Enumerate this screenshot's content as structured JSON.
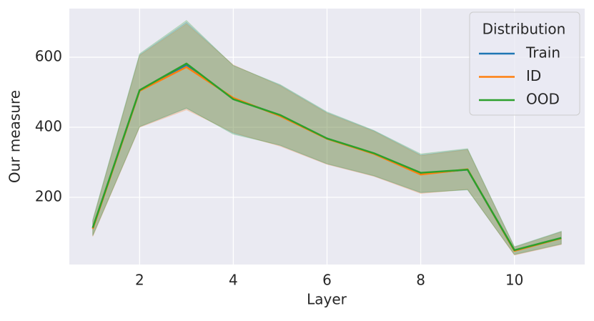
{
  "chart_data": {
    "type": "line",
    "x_label": "Layer",
    "y_label": "Our measure",
    "x": [
      1,
      2,
      3,
      4,
      5,
      6,
      7,
      8,
      9,
      10,
      11
    ],
    "series": [
      {
        "name": "Train",
        "color": "#1f77b4",
        "values": [
          112,
          505,
          578,
          482,
          434,
          368,
          325,
          267,
          279,
          48,
          84
        ],
        "lower": [
          90,
          401,
          454,
          383,
          348,
          295,
          261,
          213,
          222,
          36,
          66
        ],
        "upper": [
          134,
          607,
          700,
          577,
          520,
          442,
          390,
          321,
          337,
          58,
          102
        ]
      },
      {
        "name": "ID",
        "color": "#ff7f0e",
        "values": [
          110,
          504,
          572,
          484,
          432,
          367,
          324,
          265,
          280,
          47,
          83
        ],
        "lower": [
          88,
          400,
          450,
          385,
          346,
          294,
          260,
          211,
          223,
          35,
          65
        ],
        "upper": [
          132,
          605,
          695,
          578,
          518,
          440,
          388,
          319,
          336,
          57,
          101
        ]
      },
      {
        "name": "OOD",
        "color": "#2ca02c",
        "values": [
          113,
          506,
          582,
          480,
          435,
          368,
          326,
          270,
          279,
          49,
          84
        ],
        "lower": [
          91,
          402,
          455,
          380,
          349,
          296,
          262,
          214,
          221,
          37,
          67
        ],
        "upper": [
          136,
          610,
          705,
          576,
          522,
          444,
          391,
          324,
          339,
          59,
          103
        ]
      }
    ],
    "band_opacity": 0.2,
    "xlim": [
      0.5,
      11.5
    ],
    "xticks": [
      2,
      4,
      6,
      8,
      10
    ],
    "ylim": [
      8,
      739
    ],
    "yticks": [
      200,
      400,
      600
    ],
    "grid": true,
    "legend": "upper right",
    "legend_title": "Distribution"
  }
}
